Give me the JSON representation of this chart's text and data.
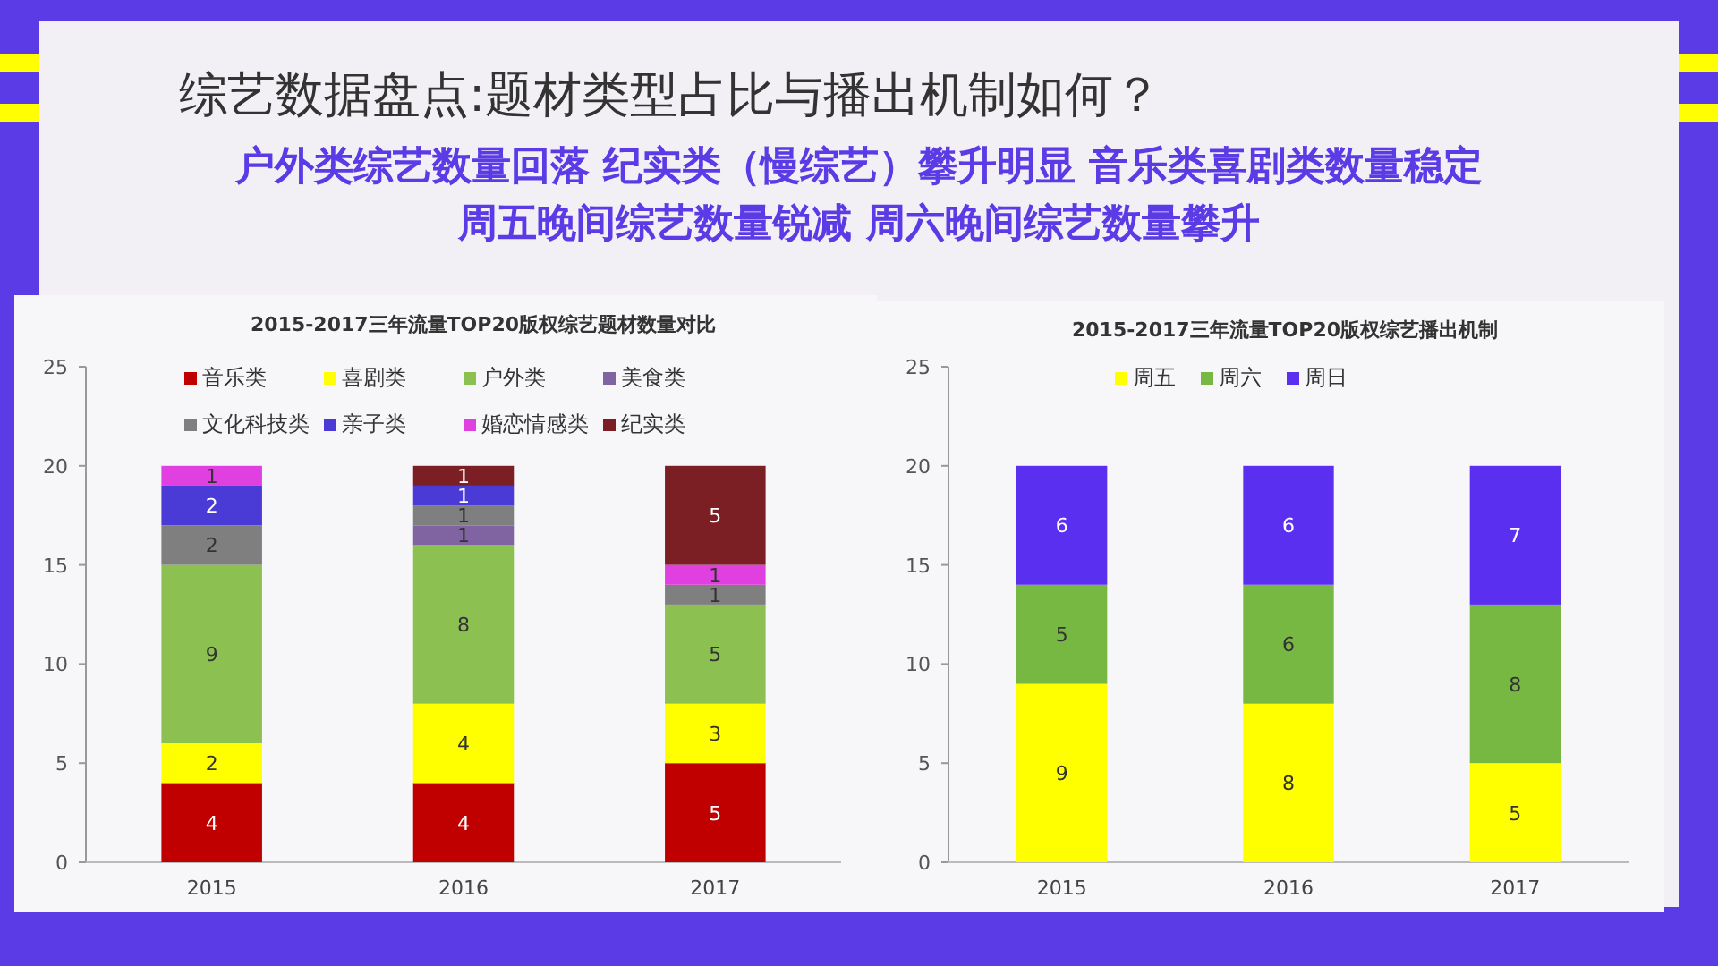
{
  "chart_data": [
    {
      "type": "bar",
      "stacked": true,
      "title": "2015-2017三年流量TOP20版权综艺题材数量对比",
      "annotations": [
        "综艺数据盘点:题材类型占比与播出机制如何？",
        "户外类综艺数量回落 纪实类（慢综艺）攀升明显 音乐类喜剧类数量稳定",
        "周五晚间综艺数量锐减 周六晚间综艺数量攀升"
      ],
      "categories": [
        "2015",
        "2016",
        "2017"
      ],
      "ylim": [
        0,
        25
      ],
      "yticks": [
        0,
        5,
        10,
        15,
        20,
        25
      ],
      "grid": false,
      "legend": "top",
      "data_labels": true,
      "series": [
        {
          "name": "音乐类",
          "color": "#c00000",
          "values": [
            4,
            4,
            5
          ]
        },
        {
          "name": "喜剧类",
          "color": "#ffff00",
          "values": [
            2,
            4,
            3
          ]
        },
        {
          "name": "户外类",
          "color": "#8cc152",
          "values": [
            9,
            8,
            5
          ]
        },
        {
          "name": "美食类",
          "color": "#8064a2",
          "values": [
            null,
            1,
            null
          ]
        },
        {
          "name": "文化科技类",
          "color": "#7f7f7f",
          "values": [
            2,
            1,
            1
          ]
        },
        {
          "name": "亲子类",
          "color": "#4b3bd6",
          "values": [
            2,
            1,
            null
          ]
        },
        {
          "name": "婚恋情感类",
          "color": "#e040e0",
          "values": [
            1,
            null,
            1
          ]
        },
        {
          "name": "纪实类",
          "color": "#7b1f24",
          "values": [
            null,
            1,
            5
          ]
        }
      ]
    },
    {
      "type": "bar",
      "stacked": true,
      "title": "2015-2017三年流量TOP20版权综艺播出机制",
      "categories": [
        "2015",
        "2016",
        "2017"
      ],
      "ylim": [
        0,
        25
      ],
      "yticks": [
        0,
        5,
        10,
        15,
        20,
        25
      ],
      "grid": false,
      "legend": "top",
      "data_labels": true,
      "series": [
        {
          "name": "周五",
          "color": "#ffff00",
          "values": [
            9,
            8,
            5
          ]
        },
        {
          "name": "周六",
          "color": "#77b843",
          "values": [
            5,
            6,
            8
          ]
        },
        {
          "name": "周日",
          "color": "#5b2ff0",
          "values": [
            6,
            6,
            7
          ]
        }
      ]
    }
  ]
}
